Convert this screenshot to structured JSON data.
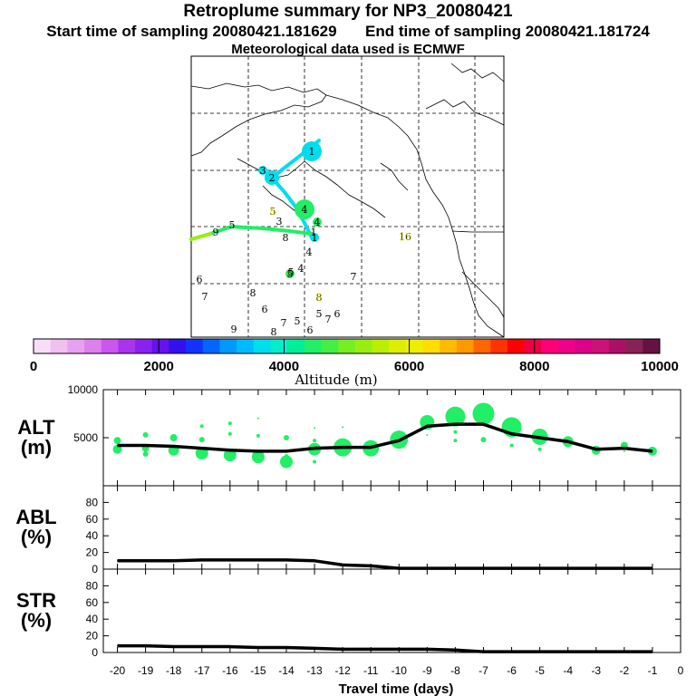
{
  "header": {
    "title": "Retroplume summary for NP3_20080421",
    "start_label": "Start time of sampling",
    "start_value": "20080421.181629",
    "end_label": "End time of sampling",
    "end_value": "20080421.181724",
    "met_line": "Meteorological data used is ECMWF"
  },
  "colors": {
    "plume": "#22ee66",
    "map_bg": "#ffffff"
  },
  "chart_data": [
    {
      "type": "map",
      "title": "Retroplume trajectory map",
      "plume_points": [
        {
          "label": "1",
          "color": "#00ddee",
          "size": 3
        },
        {
          "label": "2",
          "color": "#00ddee",
          "size": 2
        },
        {
          "label": "3",
          "color": "#00ddee",
          "size": 1
        },
        {
          "label": "4",
          "color": "#22ee66",
          "size": 3
        },
        {
          "label": "4",
          "color": "#22ee66",
          "size": 1
        },
        {
          "label": "5",
          "color": "#33ee55",
          "size": 1
        },
        {
          "label": "1",
          "color": "#00ddee",
          "size": 1
        }
      ],
      "plume_labels": [
        {
          "label": "5",
          "color": "#dddd00"
        },
        {
          "label": "3",
          "color": "#000000"
        },
        {
          "label": "8",
          "color": "#000000"
        },
        {
          "label": "4",
          "color": "#000000"
        },
        {
          "label": "5",
          "color": "#000000"
        },
        {
          "label": "4",
          "color": "#000000"
        },
        {
          "label": "7",
          "color": "#000000"
        },
        {
          "label": "6",
          "color": "#000000"
        },
        {
          "label": "7",
          "color": "#000000"
        },
        {
          "label": "8",
          "color": "#000000"
        },
        {
          "label": "8",
          "color": "#dddd00"
        },
        {
          "label": "6",
          "color": "#000000"
        },
        {
          "label": "7",
          "color": "#000000"
        },
        {
          "label": "5",
          "color": "#000000"
        },
        {
          "label": "5",
          "color": "#000000"
        },
        {
          "label": "6",
          "color": "#000000"
        },
        {
          "label": "7",
          "color": "#000000"
        },
        {
          "label": "6",
          "color": "#000000"
        },
        {
          "label": "9",
          "color": "#000000"
        },
        {
          "label": "8",
          "color": "#000000"
        },
        {
          "label": "9",
          "color": "#000000"
        },
        {
          "label": "16",
          "color": "#dddd00"
        },
        {
          "label": "1",
          "color": "#000000"
        },
        {
          "label": "5",
          "color": "#000000"
        }
      ]
    },
    {
      "type": "colorbar",
      "xlabel": "Altitude (m)",
      "range": [
        0,
        10000
      ],
      "tick_labels": [
        "0",
        "2000",
        "4000",
        "6000",
        "8000",
        "10000"
      ],
      "tick_values": [
        0,
        2000,
        4000,
        6000,
        8000,
        10000
      ],
      "colors": [
        "#f8ddf8",
        "#f0c0f0",
        "#e8a0f0",
        "#dd80ee",
        "#cc55ee",
        "#aa33ee",
        "#8822ee",
        "#6611ee",
        "#3311ee",
        "#1133ff",
        "#0066ff",
        "#0099ff",
        "#00bbff",
        "#00ddee",
        "#00eecc",
        "#00ee99",
        "#22ee66",
        "#44ee44",
        "#77ee22",
        "#99ee11",
        "#bbee00",
        "#ddee00",
        "#eeee00",
        "#ffdd00",
        "#ffbb00",
        "#ff9900",
        "#ff6600",
        "#ff3300",
        "#ff0000",
        "#ee0044",
        "#ff0077",
        "#ee0088",
        "#dd0088",
        "#cc1177",
        "#aa1166",
        "#882255",
        "#661144"
      ]
    },
    {
      "type": "line",
      "title": "",
      "ylabel": "ALT\n(m)",
      "ylabel_lines": [
        "ALT",
        "(m)"
      ],
      "x": [
        -20,
        -19,
        -18,
        -17,
        -16,
        -15,
        -14,
        -13,
        -12,
        -11,
        -10,
        -9,
        -8,
        -7,
        -6,
        -5,
        -4,
        -3,
        -2,
        -1
      ],
      "values": [
        4200,
        4200,
        4100,
        3900,
        3700,
        3600,
        3600,
        3900,
        4000,
        4000,
        4700,
        6200,
        6400,
        6400,
        5400,
        5000,
        4600,
        3800,
        3900,
        3600
      ],
      "ylim": [
        0,
        10000
      ],
      "yticks": [
        5000,
        10000
      ],
      "ytick_labels": [
        "5000",
        "10000"
      ],
      "bubbles": [
        {
          "x": -20,
          "y": 4700,
          "r": 4
        },
        {
          "x": -20,
          "y": 3800,
          "r": 5
        },
        {
          "x": -19,
          "y": 5300,
          "r": 3
        },
        {
          "x": -19,
          "y": 3900,
          "r": 4
        },
        {
          "x": -19,
          "y": 3300,
          "r": 3
        },
        {
          "x": -18,
          "y": 5000,
          "r": 4
        },
        {
          "x": -18,
          "y": 3700,
          "r": 6
        },
        {
          "x": -17,
          "y": 6200,
          "r": 2
        },
        {
          "x": -17,
          "y": 4800,
          "r": 3
        },
        {
          "x": -17,
          "y": 3400,
          "r": 7
        },
        {
          "x": -16,
          "y": 6500,
          "r": 2
        },
        {
          "x": -16,
          "y": 5400,
          "r": 2
        },
        {
          "x": -16,
          "y": 3200,
          "r": 7
        },
        {
          "x": -15,
          "y": 7000,
          "r": 1
        },
        {
          "x": -15,
          "y": 5200,
          "r": 2
        },
        {
          "x": -15,
          "y": 3000,
          "r": 7
        },
        {
          "x": -14,
          "y": 5000,
          "r": 3
        },
        {
          "x": -14,
          "y": 3100,
          "r": 2
        },
        {
          "x": -14,
          "y": 2500,
          "r": 7
        },
        {
          "x": -13,
          "y": 6000,
          "r": 1
        },
        {
          "x": -13,
          "y": 4700,
          "r": 2
        },
        {
          "x": -13,
          "y": 3800,
          "r": 7
        },
        {
          "x": -13,
          "y": 2500,
          "r": 2
        },
        {
          "x": -12,
          "y": 6100,
          "r": 1
        },
        {
          "x": -12,
          "y": 4000,
          "r": 10
        },
        {
          "x": -11,
          "y": 3900,
          "r": 9
        },
        {
          "x": -10,
          "y": 4800,
          "r": 10
        },
        {
          "x": -9,
          "y": 6600,
          "r": 8
        },
        {
          "x": -9,
          "y": 5300,
          "r": 1
        },
        {
          "x": -8,
          "y": 7200,
          "r": 11
        },
        {
          "x": -8,
          "y": 5600,
          "r": 2
        },
        {
          "x": -8,
          "y": 4700,
          "r": 2
        },
        {
          "x": -7,
          "y": 7500,
          "r": 12
        },
        {
          "x": -7,
          "y": 4800,
          "r": 3
        },
        {
          "x": -6,
          "y": 6100,
          "r": 11
        },
        {
          "x": -6,
          "y": 4200,
          "r": 2
        },
        {
          "x": -5,
          "y": 5100,
          "r": 9
        },
        {
          "x": -5,
          "y": 3800,
          "r": 2
        },
        {
          "x": -4,
          "y": 4600,
          "r": 6
        },
        {
          "x": -3,
          "y": 3700,
          "r": 5
        },
        {
          "x": -2,
          "y": 4200,
          "r": 4
        },
        {
          "x": -2,
          "y": 3600,
          "r": 1
        },
        {
          "x": -1,
          "y": 3600,
          "r": 5
        }
      ]
    },
    {
      "type": "line",
      "ylabel": "ABL\n(%)",
      "ylabel_lines": [
        "ABL",
        "(%)"
      ],
      "x": [
        -20,
        -19,
        -18,
        -17,
        -16,
        -15,
        -14,
        -13,
        -12,
        -11,
        -10,
        -9,
        -8,
        -7,
        -6,
        -5,
        -4,
        -3,
        -2,
        -1
      ],
      "values": [
        10,
        10,
        10,
        11,
        11,
        11,
        11,
        10,
        5,
        4,
        1,
        1,
        1,
        1,
        1,
        1,
        1,
        1,
        1,
        1
      ],
      "ylim": [
        0,
        100
      ],
      "yticks": [
        0,
        20,
        40,
        60,
        80
      ],
      "ytick_labels": [
        "0",
        "20",
        "40",
        "60",
        "80"
      ]
    },
    {
      "type": "line",
      "ylabel": "STR\n(%)",
      "ylabel_lines": [
        "STR",
        "(%)"
      ],
      "x": [
        -20,
        -19,
        -18,
        -17,
        -16,
        -15,
        -14,
        -13,
        -12,
        -11,
        -10,
        -9,
        -8,
        -7,
        -6,
        -5,
        -4,
        -3,
        -2,
        -1
      ],
      "values": [
        8,
        8,
        7,
        7,
        7,
        6,
        6,
        5,
        4,
        4,
        4,
        4,
        3,
        1,
        1,
        1,
        1,
        1,
        1,
        1
      ],
      "ylim": [
        0,
        100
      ],
      "yticks": [
        0,
        20,
        40,
        60,
        80
      ],
      "ytick_labels": [
        "0",
        "20",
        "40",
        "60",
        "80"
      ],
      "xlabel": "Travel time (days)",
      "xticks": [
        -20,
        -19,
        -18,
        -17,
        -16,
        -15,
        -14,
        -13,
        -12,
        -11,
        -10,
        -9,
        -8,
        -7,
        -6,
        -5,
        -4,
        -3,
        -2,
        -1,
        0
      ],
      "xtick_labels": [
        "-20",
        "-19",
        "-18",
        "-17",
        "-16",
        "-15",
        "-14",
        "-13",
        "-12",
        "-11",
        "-10",
        "-9",
        "-8",
        "-7",
        "-6",
        "-5",
        "-4",
        "-3",
        "-2",
        "-1",
        "0"
      ]
    }
  ]
}
